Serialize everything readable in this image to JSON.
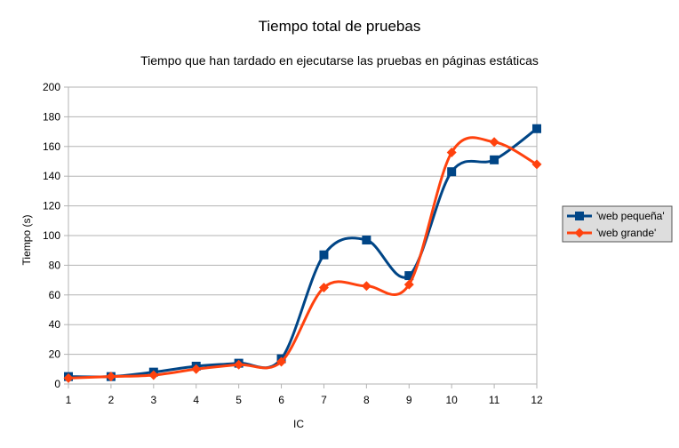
{
  "chart_data": {
    "type": "line",
    "title": "Tiempo total de pruebas",
    "subtitle": "Tiempo que han tardado en ejecutarse las pruebas en páginas estáticas",
    "xlabel": "IC",
    "ylabel": "Tiempo (s)",
    "categories": [
      "1",
      "2",
      "3",
      "4",
      "5",
      "6",
      "7",
      "8",
      "9",
      "10",
      "11",
      "12"
    ],
    "ylim": [
      0,
      200
    ],
    "yticks": [
      0,
      20,
      40,
      60,
      80,
      100,
      120,
      140,
      160,
      180,
      200
    ],
    "grid": "horizontal",
    "legend_position": "right",
    "series": [
      {
        "name": "'web pequeña'",
        "color": "#004586",
        "marker": "square",
        "values": [
          5,
          5,
          8,
          12,
          14,
          17,
          87,
          97,
          73,
          143,
          151,
          172
        ]
      },
      {
        "name": "'web grande'",
        "color": "#ff420e",
        "marker": "diamond",
        "values": [
          4,
          5,
          6,
          10,
          13,
          15,
          65,
          66,
          67,
          156,
          163,
          148
        ]
      }
    ]
  }
}
